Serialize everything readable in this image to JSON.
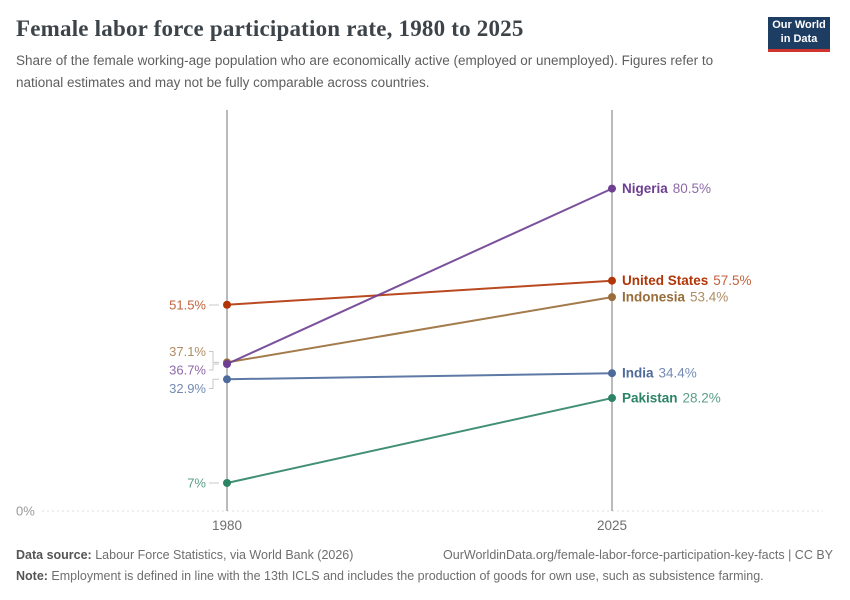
{
  "header": {
    "title": "Female labor force participation rate, 1980 to 2025",
    "subtitle": "Share of the female working-age population who are economically active (employed or unemployed). Figures refer to national estimates and may not be fully comparable across countries.",
    "logo": {
      "line1": "Our World",
      "line2": "in Data",
      "bg_color": "#1d3d63",
      "accent_color": "#cf342e"
    }
  },
  "chart_data": {
    "type": "line",
    "subtype": "slope",
    "x": [
      1980,
      2025
    ],
    "x_tick_labels": [
      "1980",
      "2025"
    ],
    "ylim": [
      0,
      100
    ],
    "baseline_label": "0%",
    "grid": "baseline-only",
    "series": [
      {
        "name": "Nigeria",
        "values": [
          36.7,
          80.5
        ],
        "start_label": "36.7%",
        "end_label": "80.5%",
        "color": "#6d3e91"
      },
      {
        "name": "United States",
        "values": [
          51.5,
          57.5
        ],
        "start_label": "51.5%",
        "end_label": "57.5%",
        "color": "#b13507"
      },
      {
        "name": "Indonesia",
        "values": [
          37.1,
          53.4
        ],
        "start_label": "37.1%",
        "end_label": "53.4%",
        "color": "#996d39"
      },
      {
        "name": "India",
        "values": [
          32.9,
          34.4
        ],
        "start_label": "32.9%",
        "end_label": "34.4%",
        "color": "#4c6a9c"
      },
      {
        "name": "Pakistan",
        "values": [
          7.0,
          28.2
        ],
        "start_label": "7%",
        "end_label": "28.2%",
        "color": "#2c8465"
      }
    ]
  },
  "footer": {
    "source_label": "Data source:",
    "source_text": " Labour Force Statistics, via World Bank (2026)",
    "link_text": "OurWorldinData.org/female-labor-force-participation-key-facts | CC BY",
    "note_label": "Note:",
    "note_text": " Employment is defined in line with the 13th ICLS and includes the production of goods for own use, such as subsistence farming."
  }
}
